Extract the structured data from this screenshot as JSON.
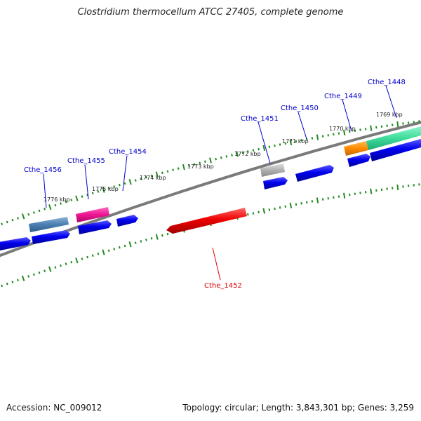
{
  "title": "Clostridium thermocellum ATCC 27405, complete genome",
  "footer": {
    "accession": "Accession: NC_009012",
    "topology": "Topology: circular; Length: 3,843,301 bp; Genes: 3,259"
  },
  "colors": {
    "backbone": "#808080",
    "ticks": "#228b22",
    "gene_default": "#0000ee",
    "gene_label": "#0000cc",
    "highlight_label": "#dd0000",
    "tick_label": "#222222"
  },
  "ruler_labels": [
    "1776 kbp",
    "1775 kbp",
    "1774 kbp",
    "1773 kbp",
    "1772 kbp",
    "1771 kbp",
    "1770 kbp",
    "1769 kbp"
  ],
  "gene_labels": [
    "Cthe_1456",
    "Cthe_1455",
    "Cthe_1454",
    "Cthe_1451",
    "Cthe_1450",
    "Cthe_1449",
    "Cthe_1448"
  ],
  "highlight_label": "Cthe_1452"
}
